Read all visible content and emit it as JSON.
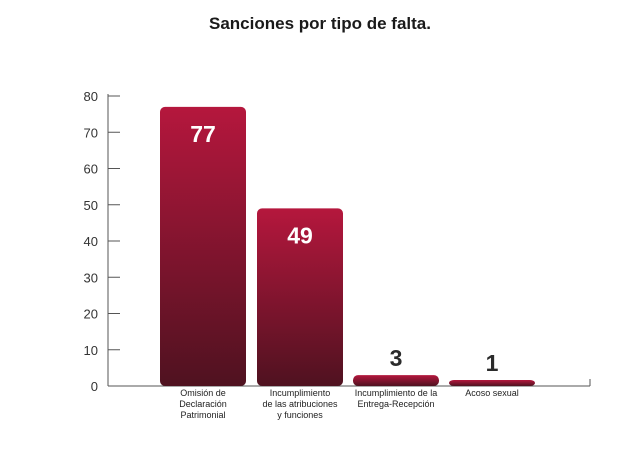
{
  "chart_data": {
    "type": "bar",
    "title": "Sanciones por tipo de falta.",
    "categories": [
      [
        "Omisión de",
        "Declaración",
        "Patrimonial"
      ],
      [
        "Incumplimiento",
        "de las atribuciones",
        "y funciones"
      ],
      [
        "Incumplimiento de la",
        "Entrega-Recepción"
      ],
      [
        "Acoso sexual"
      ]
    ],
    "values": [
      77,
      49,
      3,
      1
    ],
    "data_labels": [
      "77",
      "49",
      "3",
      "1"
    ],
    "yticks": [
      0,
      10,
      20,
      30,
      40,
      50,
      60,
      70,
      80
    ],
    "ylim": [
      0,
      80
    ],
    "xlabel": "",
    "ylabel": "",
    "grid": false,
    "colors": {
      "bar_top": "#b5173d",
      "bar_bottom": "#4f1220",
      "label_inside": "#ffffff",
      "label_outside": "#2b2b2b",
      "axis": "#555555"
    }
  }
}
